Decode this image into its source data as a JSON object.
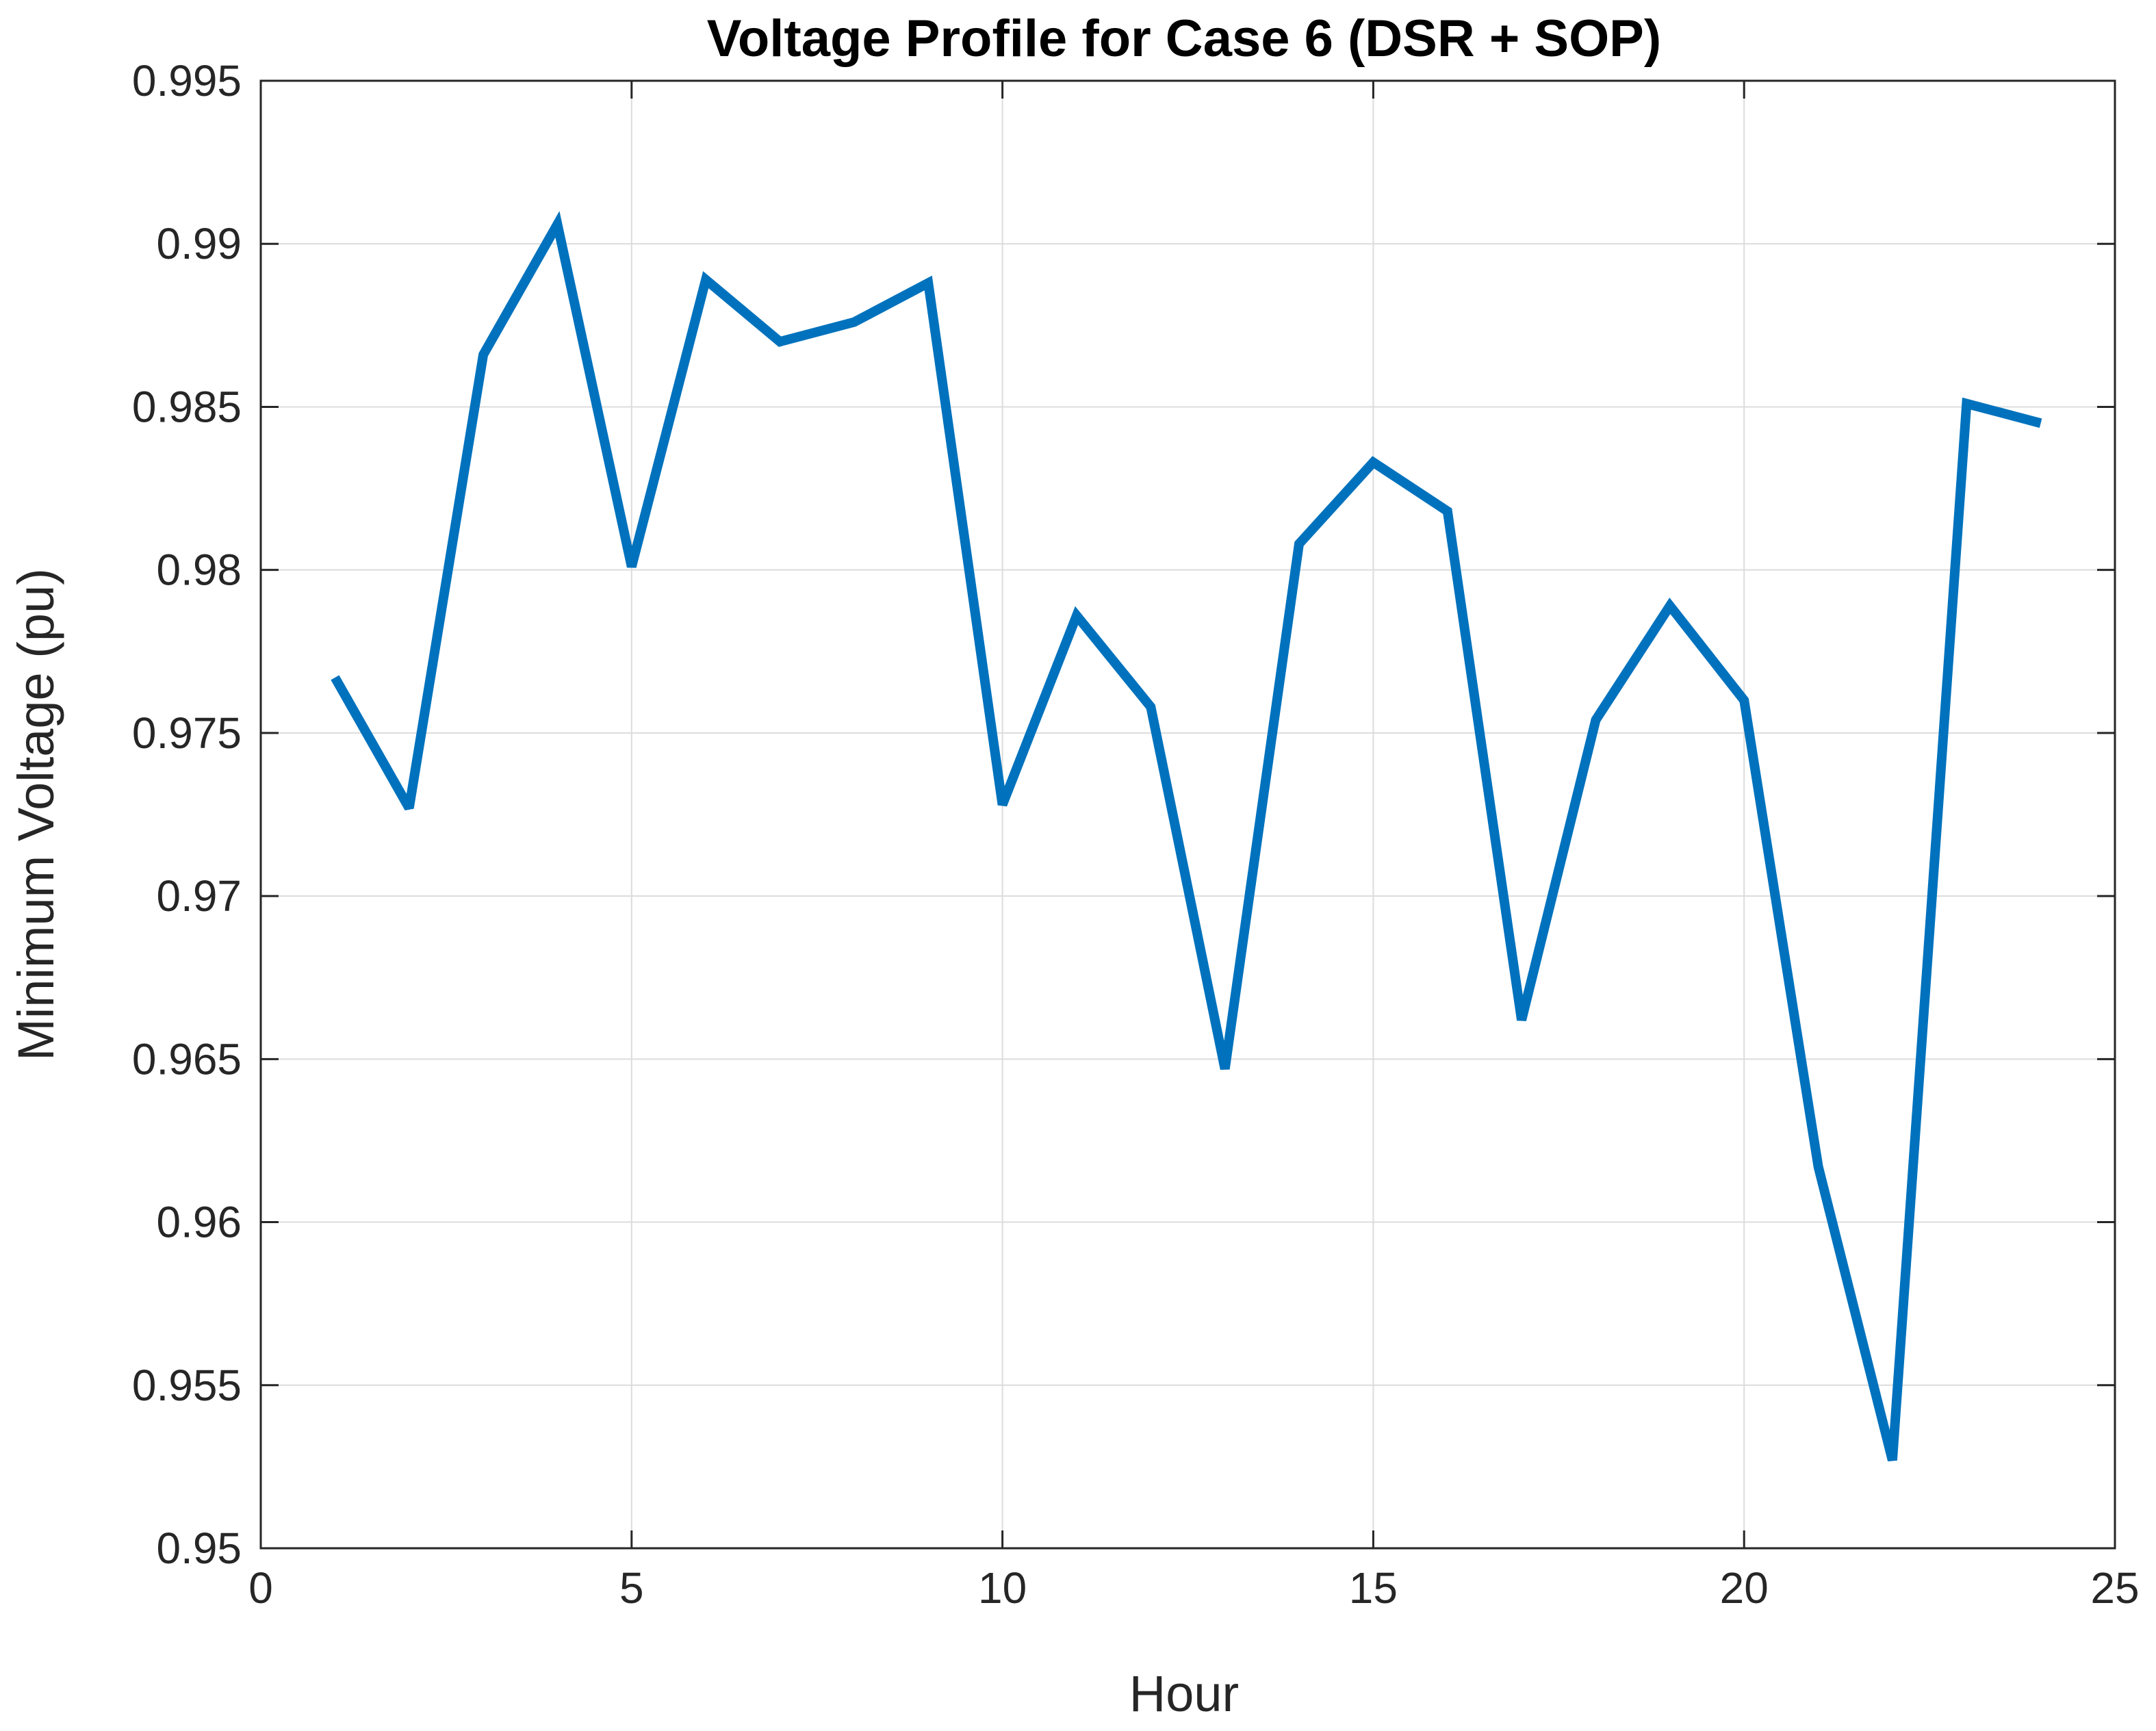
{
  "chart_data": {
    "type": "line",
    "title": "Voltage Profile for Case 6 (DSR + SOP)",
    "xlabel": "Hour",
    "ylabel": "Minimum Voltage (pu)",
    "xlim": [
      0,
      25
    ],
    "ylim": [
      0.95,
      0.995
    ],
    "xticks": [
      0,
      5,
      10,
      15,
      20,
      25
    ],
    "xtick_labels": [
      "0",
      "5",
      "10",
      "15",
      "20",
      "25"
    ],
    "yticks": [
      0.95,
      0.955,
      0.96,
      0.965,
      0.97,
      0.975,
      0.98,
      0.985,
      0.99,
      0.995
    ],
    "ytick_labels": [
      "0.95",
      "0.955",
      "0.96",
      "0.965",
      "0.97",
      "0.975",
      "0.98",
      "0.985",
      "0.99",
      "0.995"
    ],
    "grid": true,
    "line_color": "#0072BD",
    "series": [
      {
        "x": [
          1,
          2,
          3,
          4,
          5,
          6,
          7,
          8,
          9,
          10,
          11,
          12,
          13,
          14,
          15,
          16,
          17,
          18,
          19,
          20,
          21,
          22,
          23,
          24
        ],
        "values": [
          0.9767,
          0.9727,
          0.9866,
          0.9906,
          0.9801,
          0.9889,
          0.987,
          0.9876,
          0.9888,
          0.9728,
          0.9786,
          0.9758,
          0.9647,
          0.9808,
          0.9833,
          0.9818,
          0.9662,
          0.9754,
          0.9789,
          0.976,
          0.9617,
          0.9527,
          0.9851,
          0.9845
        ]
      }
    ]
  }
}
